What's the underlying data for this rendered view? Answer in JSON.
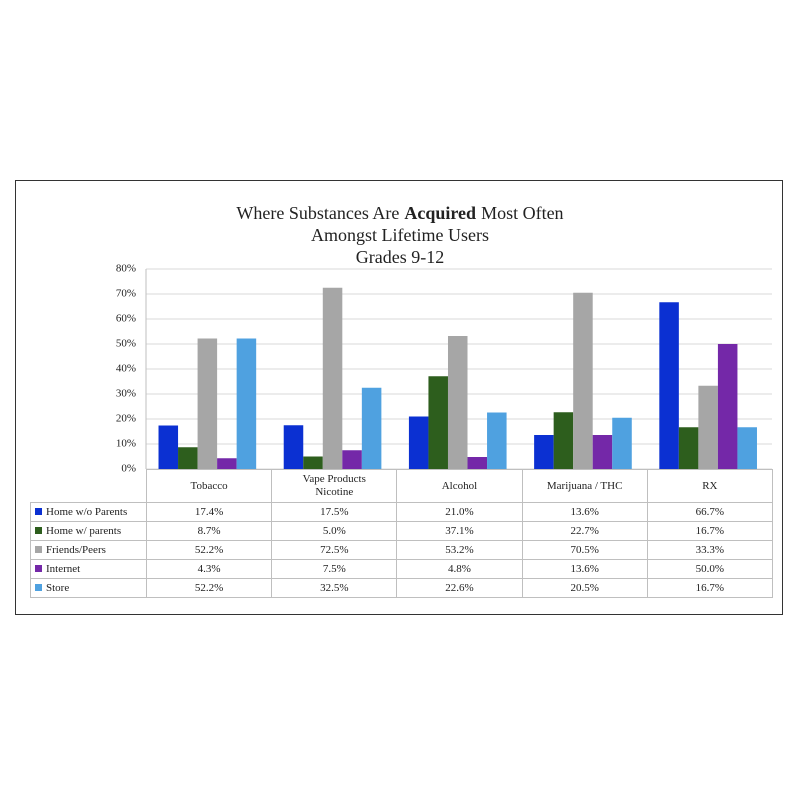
{
  "chart_data": {
    "type": "bar",
    "title_lines": [
      [
        {
          "text": "Where Substances Are"
        },
        {
          "text": "Acquired",
          "bold": true
        },
        {
          "text": "Most Often"
        }
      ],
      [
        {
          "text": "Amongst Lifetime Users"
        }
      ],
      [
        {
          "text": "Grades 9-12"
        }
      ]
    ],
    "categories": [
      "Tobacco",
      "Vape Products Nicotine",
      "Alcohol",
      "Marijuana / THC",
      "RX"
    ],
    "series": [
      {
        "name": "Home w/o Parents",
        "color": "#0b30d2",
        "values": [
          17.4,
          17.5,
          21.0,
          13.6,
          66.7
        ],
        "value_labels": [
          "17.4%",
          "17.5%",
          "21.0%",
          "13.6%",
          "66.7%"
        ]
      },
      {
        "name": "Home w/ parents",
        "color": "#2d5e1d",
        "values": [
          8.7,
          5.0,
          37.1,
          22.7,
          16.7
        ],
        "value_labels": [
          "8.7%",
          "5.0%",
          "37.1%",
          "22.7%",
          "16.7%"
        ]
      },
      {
        "name": "Friends/Peers",
        "color": "#a6a6a6",
        "values": [
          52.2,
          72.5,
          53.2,
          70.5,
          33.3
        ],
        "value_labels": [
          "52.2%",
          "72.5%",
          "53.2%",
          "70.5%",
          "33.3%"
        ]
      },
      {
        "name": "Internet",
        "color": "#7428a8",
        "values": [
          4.3,
          7.5,
          4.8,
          13.6,
          50.0
        ],
        "value_labels": [
          "4.3%",
          "7.5%",
          "4.8%",
          "13.6%",
          "50.0%"
        ]
      },
      {
        "name": "Store",
        "color": "#4fa1e0",
        "values": [
          52.2,
          32.5,
          22.6,
          20.5,
          16.7
        ],
        "value_labels": [
          "52.2%",
          "32.5%",
          "22.6%",
          "20.5%",
          "16.7%"
        ]
      }
    ],
    "ylim": [
      0,
      80
    ],
    "yticks": [
      {
        "value": 0,
        "label": "0%"
      },
      {
        "value": 10,
        "label": "10%"
      },
      {
        "value": 20,
        "label": "20%"
      },
      {
        "value": 30,
        "label": "30%"
      },
      {
        "value": 40,
        "label": "40%"
      },
      {
        "value": 50,
        "label": "50%"
      },
      {
        "value": 60,
        "label": "60%"
      },
      {
        "value": 70,
        "label": "70%"
      },
      {
        "value": 80,
        "label": "80%"
      }
    ],
    "grid": true
  }
}
